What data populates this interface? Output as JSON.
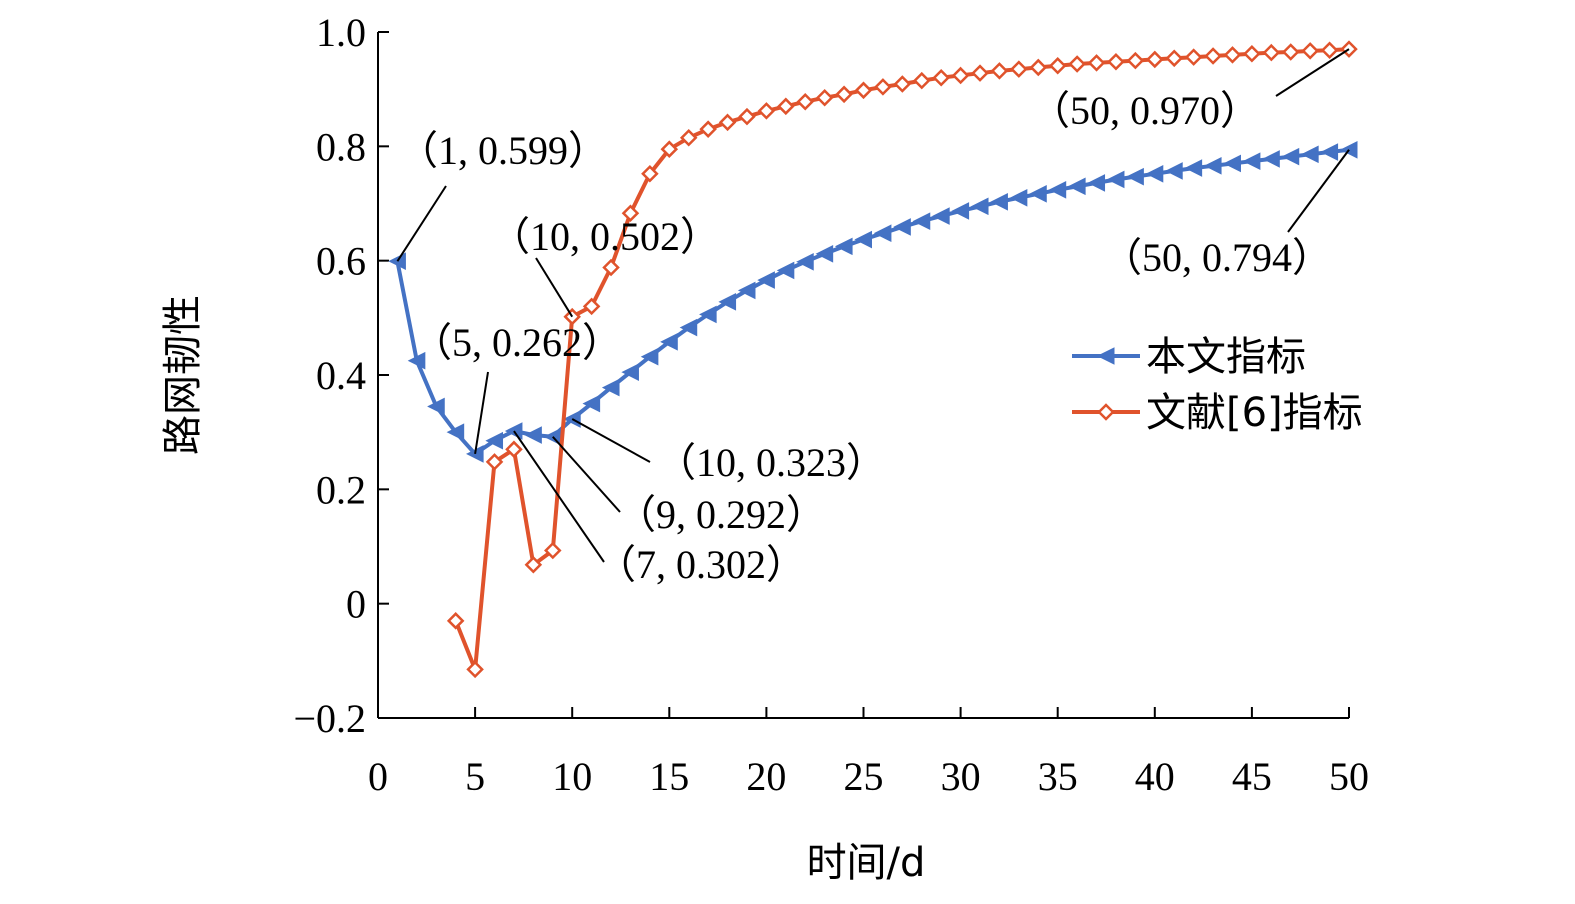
{
  "chart_data": {
    "type": "line",
    "xlabel": "时间/d",
    "ylabel": "路网韧性",
    "xlim": [
      0,
      50
    ],
    "ylim": [
      -0.2,
      1.0
    ],
    "xticks": [
      "0",
      "5",
      "10",
      "15",
      "20",
      "25",
      "30",
      "35",
      "40",
      "45",
      "50"
    ],
    "yticks": [
      "1.0",
      "0.8",
      "0.6",
      "0.4",
      "0.2",
      "0",
      "−0.2"
    ],
    "legend_position": "right",
    "grid": false,
    "series": [
      {
        "name": "本文指标",
        "color": "#4472C4",
        "marker": "triangle-left",
        "x": [
          1,
          2,
          3,
          4,
          5,
          6,
          7,
          8,
          9,
          10,
          11,
          12,
          13,
          14,
          15,
          16,
          17,
          18,
          19,
          20,
          21,
          22,
          23,
          24,
          25,
          26,
          27,
          28,
          29,
          30,
          31,
          32,
          33,
          34,
          35,
          36,
          37,
          38,
          39,
          40,
          41,
          42,
          43,
          44,
          45,
          46,
          47,
          48,
          49,
          50
        ],
        "values": [
          0.599,
          0.425,
          0.345,
          0.3,
          0.262,
          0.285,
          0.302,
          0.295,
          0.292,
          0.323,
          0.35,
          0.378,
          0.405,
          0.432,
          0.458,
          0.483,
          0.506,
          0.528,
          0.548,
          0.566,
          0.583,
          0.598,
          0.612,
          0.625,
          0.637,
          0.648,
          0.659,
          0.669,
          0.678,
          0.687,
          0.695,
          0.703,
          0.71,
          0.717,
          0.724,
          0.73,
          0.736,
          0.742,
          0.747,
          0.752,
          0.757,
          0.762,
          0.766,
          0.77,
          0.774,
          0.778,
          0.782,
          0.786,
          0.79,
          0.794
        ]
      },
      {
        "name": "文献[6]指标",
        "color": "#E0532C",
        "marker": "diamond",
        "x": [
          4,
          5,
          6,
          7,
          8,
          9,
          10,
          11,
          12,
          13,
          14,
          15,
          16,
          17,
          18,
          19,
          20,
          21,
          22,
          23,
          24,
          25,
          26,
          27,
          28,
          29,
          30,
          31,
          32,
          33,
          34,
          35,
          36,
          37,
          38,
          39,
          40,
          41,
          42,
          43,
          44,
          45,
          46,
          47,
          48,
          49,
          50
        ],
        "values": [
          -0.03,
          -0.115,
          0.248,
          0.27,
          0.068,
          0.093,
          0.502,
          0.52,
          0.588,
          0.683,
          0.752,
          0.795,
          0.815,
          0.83,
          0.842,
          0.852,
          0.862,
          0.87,
          0.878,
          0.885,
          0.891,
          0.898,
          0.904,
          0.909,
          0.915,
          0.92,
          0.924,
          0.928,
          0.932,
          0.935,
          0.938,
          0.941,
          0.944,
          0.946,
          0.948,
          0.95,
          0.952,
          0.954,
          0.956,
          0.958,
          0.96,
          0.962,
          0.964,
          0.965,
          0.967,
          0.968,
          0.97
        ]
      }
    ],
    "annotations": [
      {
        "text": "（1, 0.599）",
        "series": 0,
        "x": 1,
        "y": 0.599
      },
      {
        "text": "（5, 0.262）",
        "series": 0,
        "x": 5,
        "y": 0.262
      },
      {
        "text": "（10, 0.502）",
        "series": 1,
        "x": 10,
        "y": 0.502
      },
      {
        "text": "（10, 0.323）",
        "series": 0,
        "x": 10,
        "y": 0.323
      },
      {
        "text": "（9, 0.292）",
        "series": 0,
        "x": 9,
        "y": 0.292
      },
      {
        "text": "（7, 0.302）",
        "series": 0,
        "x": 7,
        "y": 0.302
      },
      {
        "text": "（50, 0.970）",
        "series": 1,
        "x": 50,
        "y": 0.97
      },
      {
        "text": "（50, 0.794）",
        "series": 0,
        "x": 50,
        "y": 0.794
      }
    ]
  }
}
